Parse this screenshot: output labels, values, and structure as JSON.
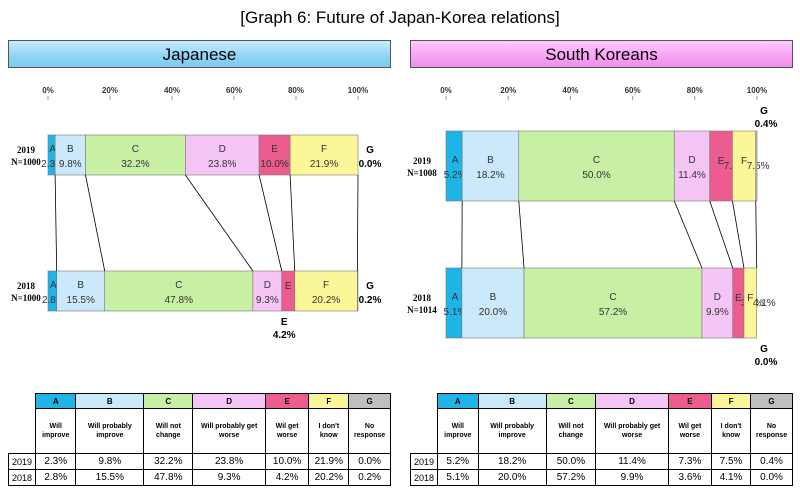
{
  "title": "[Graph 6: Future of Japan-Korea relations]",
  "colors": {
    "A": "#1fb4e8",
    "B": "#cbe9fa",
    "C": "#c8f0a4",
    "D": "#f5c6f5",
    "E": "#ec5c8e",
    "F": "#fbf798",
    "G": "#bfbfbf"
  },
  "categories": [
    {
      "key": "A",
      "label": "Will improve"
    },
    {
      "key": "B",
      "label": "Will probably improve"
    },
    {
      "key": "C",
      "label": "Will not change"
    },
    {
      "key": "D",
      "label": "Will probably get worse"
    },
    {
      "key": "E",
      "label": "Wil get worse"
    },
    {
      "key": "F",
      "label": "I don't know"
    },
    {
      "key": "G",
      "label": "No response"
    }
  ],
  "chart_data": [
    {
      "type": "bar",
      "title": "Japanese",
      "xlim": [
        0,
        100
      ],
      "ticks": [
        "0%",
        "20%",
        "40%",
        "60%",
        "80%",
        "100%"
      ],
      "series": [
        {
          "name": "2019",
          "n_label": "N=1000",
          "values": [
            2.3,
            9.8,
            32.2,
            23.8,
            10.0,
            21.9,
            0.0
          ]
        },
        {
          "name": "2018",
          "n_label": "N=1000",
          "values": [
            2.8,
            15.5,
            47.8,
            9.3,
            4.2,
            20.2,
            0.2
          ]
        }
      ]
    },
    {
      "type": "bar",
      "title": "South Koreans",
      "xlim": [
        0,
        100
      ],
      "ticks": [
        "0%",
        "20%",
        "40%",
        "60%",
        "80%",
        "100%"
      ],
      "series": [
        {
          "name": "2019",
          "n_label": "N=1008",
          "values": [
            5.2,
            18.2,
            50.0,
            11.4,
            7.3,
            7.5,
            0.4
          ]
        },
        {
          "name": "2018",
          "n_label": "N=1014",
          "values": [
            5.1,
            20.0,
            57.2,
            9.9,
            3.6,
            4.1,
            0.0
          ]
        }
      ]
    }
  ]
}
